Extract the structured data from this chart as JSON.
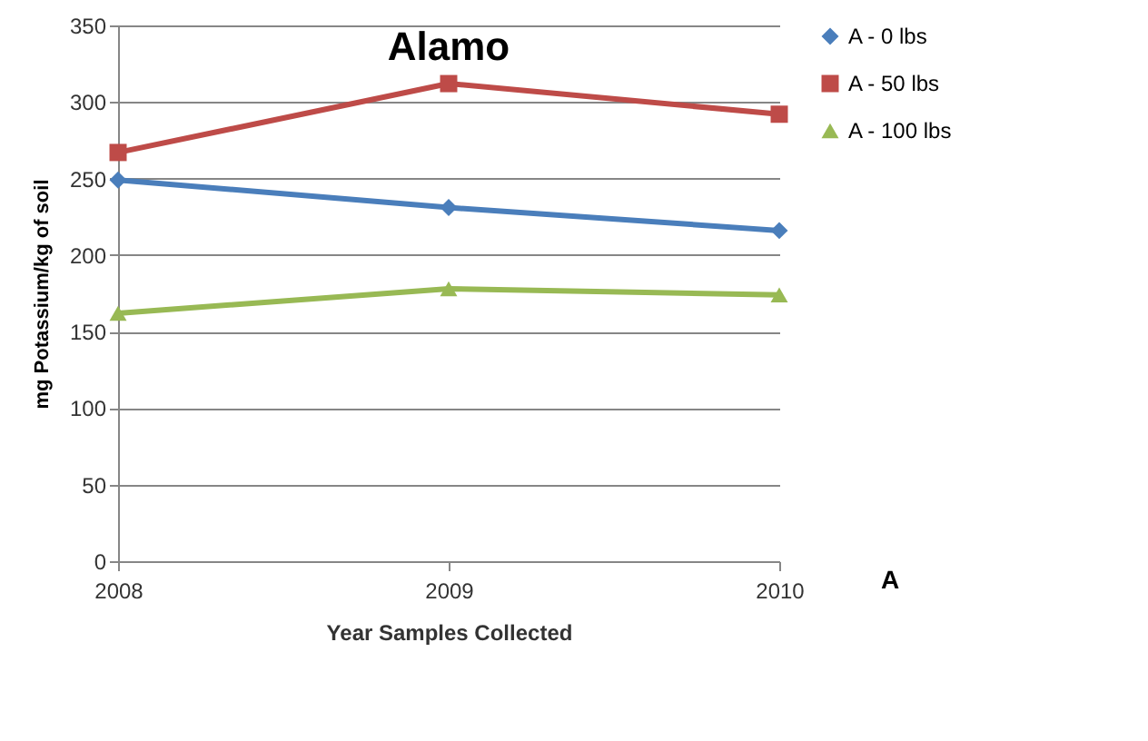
{
  "chart_data": {
    "type": "line",
    "title": "Alamo",
    "xlabel": "Year Samples Collected",
    "ylabel": "mg Potassium/kg of soil",
    "categories": [
      "2008",
      "2009",
      "2010"
    ],
    "series": [
      {
        "name": "A - 0 lbs",
        "color": "#4a7ebb",
        "marker": "diamond",
        "values": [
          249,
          231,
          216
        ]
      },
      {
        "name": "A - 50 lbs",
        "color": "#be4b48",
        "marker": "square",
        "values": [
          267,
          312,
          292
        ]
      },
      {
        "name": "A - 100 lbs",
        "color": "#98b954",
        "marker": "triangle",
        "values": [
          162,
          178,
          174
        ]
      }
    ],
    "ylim": [
      0,
      350
    ],
    "yticks": [
      0,
      50,
      100,
      150,
      200,
      250,
      300,
      350
    ],
    "grid": "y",
    "legend": "right",
    "annotations": [
      "A"
    ]
  }
}
